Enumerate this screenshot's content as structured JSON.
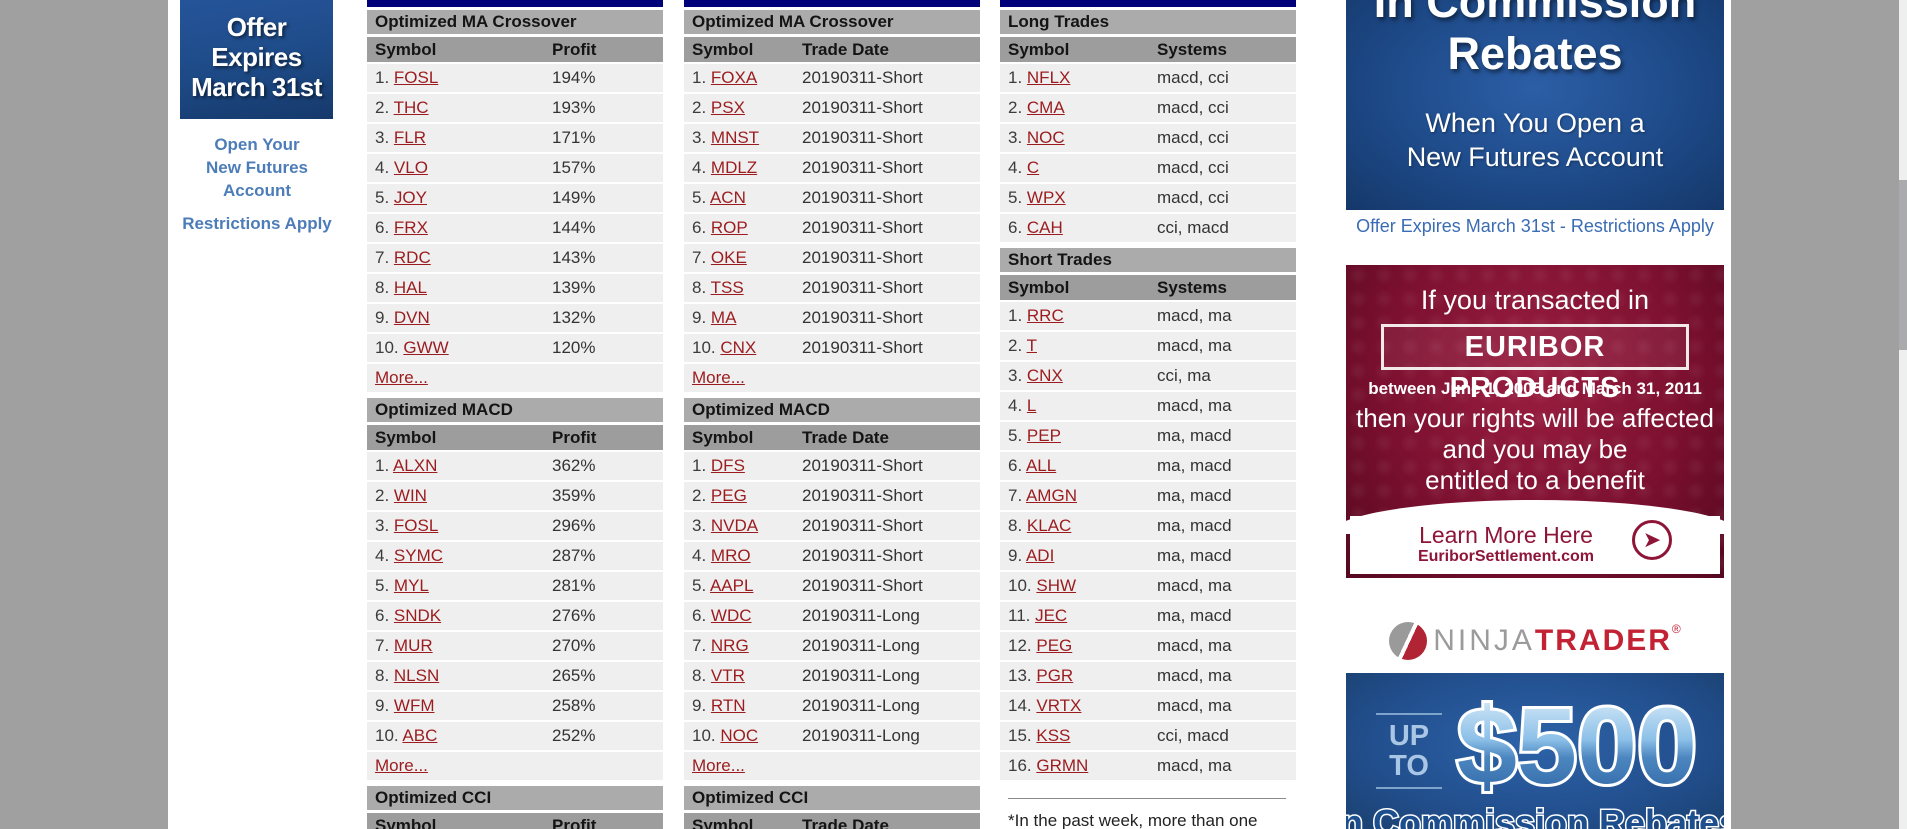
{
  "colors": {
    "link_red": "#9b1c1f",
    "navy_table_bar": "#00007b",
    "band_title_gray": "#ababab",
    "band_header_gray": "#9d9d9d",
    "row_bg": "#efefef",
    "page_surround_gray": "#a0a0a0",
    "ad_blue": "#1d4987",
    "euribor_maroon": "#7d1030",
    "ninja_red": "#c22233"
  },
  "left_ad": {
    "line1": "Offer Expires",
    "line2": "March 31st",
    "link_line1": "Open Your",
    "link_line2": "New Futures",
    "link_line3": "Account",
    "restrictions": "Restrictions Apply"
  },
  "tables": {
    "columns": [
      {
        "value_offset": "185px",
        "sections": [
          {
            "title": "Optimized MA Crossover",
            "col_headers": [
              "Symbol",
              "Profit"
            ],
            "more": "More...",
            "rows": [
              {
                "num": "1.",
                "symbol": "FOSL",
                "value": "194%"
              },
              {
                "num": "2.",
                "symbol": "THC",
                "value": "193%"
              },
              {
                "num": "3.",
                "symbol": "FLR",
                "value": "171%"
              },
              {
                "num": "4.",
                "symbol": "VLO",
                "value": "157%"
              },
              {
                "num": "5.",
                "symbol": "JOY",
                "value": "149%"
              },
              {
                "num": "6.",
                "symbol": "FRX",
                "value": "144%"
              },
              {
                "num": "7.",
                "symbol": "RDC",
                "value": "143%"
              },
              {
                "num": "8.",
                "symbol": "HAL",
                "value": "139%"
              },
              {
                "num": "9.",
                "symbol": "DVN",
                "value": "132%"
              },
              {
                "num": "10.",
                "symbol": "GWW",
                "value": "120%"
              }
            ]
          },
          {
            "title": "Optimized MACD",
            "col_headers": [
              "Symbol",
              "Profit"
            ],
            "more": "More...",
            "rows": [
              {
                "num": "1.",
                "symbol": "ALXN",
                "value": "362%"
              },
              {
                "num": "2.",
                "symbol": "WIN",
                "value": "359%"
              },
              {
                "num": "3.",
                "symbol": "FOSL",
                "value": "296%"
              },
              {
                "num": "4.",
                "symbol": "SYMC",
                "value": "287%"
              },
              {
                "num": "5.",
                "symbol": "MYL",
                "value": "281%"
              },
              {
                "num": "6.",
                "symbol": "SNDK",
                "value": "276%"
              },
              {
                "num": "7.",
                "symbol": "MUR",
                "value": "270%"
              },
              {
                "num": "8.",
                "symbol": "NLSN",
                "value": "265%"
              },
              {
                "num": "9.",
                "symbol": "WFM",
                "value": "258%"
              },
              {
                "num": "10.",
                "symbol": "ABC",
                "value": "252%"
              }
            ]
          },
          {
            "title": "Optimized CCI",
            "col_headers": [
              "Symbol",
              "Profit"
            ],
            "more": null,
            "rows": []
          }
        ]
      },
      {
        "value_offset": "118px",
        "sections": [
          {
            "title": "Optimized MA Crossover",
            "col_headers": [
              "Symbol",
              "Trade Date"
            ],
            "more": "More...",
            "rows": [
              {
                "num": "1.",
                "symbol": "FOXA",
                "value": "20190311-Short"
              },
              {
                "num": "2.",
                "symbol": "PSX",
                "value": "20190311-Short"
              },
              {
                "num": "3.",
                "symbol": "MNST",
                "value": "20190311-Short"
              },
              {
                "num": "4.",
                "symbol": "MDLZ",
                "value": "20190311-Short"
              },
              {
                "num": "5.",
                "symbol": "ACN",
                "value": "20190311-Short"
              },
              {
                "num": "6.",
                "symbol": "ROP",
                "value": "20190311-Short"
              },
              {
                "num": "7.",
                "symbol": "OKE",
                "value": "20190311-Short"
              },
              {
                "num": "8.",
                "symbol": "TSS",
                "value": "20190311-Short"
              },
              {
                "num": "9.",
                "symbol": "MA",
                "value": "20190311-Short"
              },
              {
                "num": "10.",
                "symbol": "CNX",
                "value": "20190311-Short"
              }
            ]
          },
          {
            "title": "Optimized MACD",
            "col_headers": [
              "Symbol",
              "Trade Date"
            ],
            "more": "More...",
            "rows": [
              {
                "num": "1.",
                "symbol": "DFS",
                "value": "20190311-Short"
              },
              {
                "num": "2.",
                "symbol": "PEG",
                "value": "20190311-Short"
              },
              {
                "num": "3.",
                "symbol": "NVDA",
                "value": "20190311-Short"
              },
              {
                "num": "4.",
                "symbol": "MRO",
                "value": "20190311-Short"
              },
              {
                "num": "5.",
                "symbol": "AAPL",
                "value": "20190311-Short"
              },
              {
                "num": "6.",
                "symbol": "WDC",
                "value": "20190311-Long"
              },
              {
                "num": "7.",
                "symbol": "NRG",
                "value": "20190311-Long"
              },
              {
                "num": "8.",
                "symbol": "VTR",
                "value": "20190311-Long"
              },
              {
                "num": "9.",
                "symbol": "RTN",
                "value": "20190311-Long"
              },
              {
                "num": "10.",
                "symbol": "NOC",
                "value": "20190311-Long"
              }
            ]
          },
          {
            "title": "Optimized CCI",
            "col_headers": [
              "Symbol",
              "Trade Date"
            ],
            "more": null,
            "rows": []
          }
        ]
      },
      {
        "value_offset": "157px",
        "sections": [
          {
            "title": "Long Trades",
            "col_headers": [
              "Symbol",
              "Systems"
            ],
            "more": null,
            "rows": [
              {
                "num": "1.",
                "symbol": "NFLX",
                "value": "macd, cci"
              },
              {
                "num": "2.",
                "symbol": "CMA",
                "value": "macd, cci"
              },
              {
                "num": "3.",
                "symbol": "NOC",
                "value": "macd, cci"
              },
              {
                "num": "4.",
                "symbol": "C",
                "value": "macd, cci"
              },
              {
                "num": "5.",
                "symbol": "WPX",
                "value": "macd, cci"
              },
              {
                "num": "6.",
                "symbol": "CAH",
                "value": "cci, macd"
              }
            ]
          },
          {
            "title": "Short Trades",
            "col_headers": [
              "Symbol",
              "Systems"
            ],
            "more": null,
            "rows": [
              {
                "num": "1.",
                "symbol": "RRC",
                "value": "macd, ma"
              },
              {
                "num": "2.",
                "symbol": "T",
                "value": "macd, ma"
              },
              {
                "num": "3.",
                "symbol": "CNX",
                "value": "cci, ma"
              },
              {
                "num": "4.",
                "symbol": "L",
                "value": "macd, ma"
              },
              {
                "num": "5.",
                "symbol": "PEP",
                "value": "ma, macd"
              },
              {
                "num": "6.",
                "symbol": "ALL",
                "value": "ma, macd"
              },
              {
                "num": "7.",
                "symbol": "AMGN",
                "value": "ma, macd"
              },
              {
                "num": "8.",
                "symbol": "KLAC",
                "value": "ma, macd"
              },
              {
                "num": "9.",
                "symbol": "ADI",
                "value": "ma, macd"
              },
              {
                "num": "10.",
                "symbol": "SHW",
                "value": "macd, ma"
              },
              {
                "num": "11.",
                "symbol": "JEC",
                "value": "ma, macd"
              },
              {
                "num": "12.",
                "symbol": "PEG",
                "value": "macd, ma"
              },
              {
                "num": "13.",
                "symbol": "PGR",
                "value": "macd, ma"
              },
              {
                "num": "14.",
                "symbol": "VRTX",
                "value": "macd, ma"
              },
              {
                "num": "15.",
                "symbol": "KSS",
                "value": "cci, macd"
              },
              {
                "num": "16.",
                "symbol": "GRMN",
                "value": "macd, ma"
              }
            ]
          }
        ],
        "footnote": "*In the past week, more than one"
      }
    ]
  },
  "ads": {
    "rebates": {
      "line1": "In Commission",
      "line2": "Rebates",
      "sub1": "When You Open a",
      "sub2": "New Futures Account",
      "disclaimer": "Offer Expires March 31st - Restrictions Apply"
    },
    "euribor": {
      "intro": "If you transacted in",
      "product": "EURIBOR PRODUCTS",
      "dates": "between June 1, 2005 and March 31, 2011",
      "body1": "then your rights will be affected",
      "body2": "and you may be",
      "body3": "entitled to a benefit",
      "cta": "Learn More Here",
      "site": "EuriborSettlement.com",
      "arrow_glyph": "➤"
    },
    "ninja": {
      "brand_gray": "NINJA",
      "brand_red": "TRADER",
      "reg": "®",
      "upto_line1": "UP",
      "upto_line2": "TO",
      "amount": "$500",
      "bottom": "in Commission Rebates"
    }
  }
}
